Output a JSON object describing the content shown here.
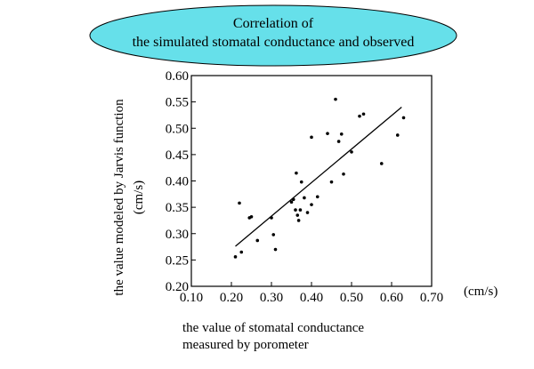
{
  "chart_data": {
    "type": "scatter",
    "title_lines": [
      "Correlation of",
      "the simulated stomatal conductance and observed"
    ],
    "xlabel_lines": [
      "the value of stomatal conductance",
      "measured by porometer"
    ],
    "x_unit": "(cm/s)",
    "ylabel_lines": [
      "the value modeled by Jarvis function",
      "(cm/s)"
    ],
    "xlim": [
      0.1,
      0.7
    ],
    "ylim": [
      0.2,
      0.6
    ],
    "xticks": [
      "0.10",
      "0.20",
      "0.30",
      "0.40",
      "0.50",
      "0.60",
      "0.70"
    ],
    "yticks": [
      "0.20",
      "0.25",
      "0.30",
      "0.35",
      "0.40",
      "0.45",
      "0.50",
      "0.55",
      "0.60"
    ],
    "grid": false,
    "points": [
      [
        0.21,
        0.256
      ],
      [
        0.22,
        0.358
      ],
      [
        0.225,
        0.265
      ],
      [
        0.245,
        0.33
      ],
      [
        0.25,
        0.332
      ],
      [
        0.265,
        0.287
      ],
      [
        0.3,
        0.33
      ],
      [
        0.305,
        0.298
      ],
      [
        0.31,
        0.27
      ],
      [
        0.35,
        0.36
      ],
      [
        0.355,
        0.365
      ],
      [
        0.36,
        0.345
      ],
      [
        0.362,
        0.415
      ],
      [
        0.365,
        0.335
      ],
      [
        0.368,
        0.325
      ],
      [
        0.372,
        0.345
      ],
      [
        0.375,
        0.398
      ],
      [
        0.382,
        0.368
      ],
      [
        0.39,
        0.34
      ],
      [
        0.4,
        0.355
      ],
      [
        0.4,
        0.483
      ],
      [
        0.415,
        0.37
      ],
      [
        0.44,
        0.49
      ],
      [
        0.45,
        0.398
      ],
      [
        0.46,
        0.555
      ],
      [
        0.468,
        0.475
      ],
      [
        0.475,
        0.489
      ],
      [
        0.48,
        0.413
      ],
      [
        0.5,
        0.455
      ],
      [
        0.52,
        0.523
      ],
      [
        0.53,
        0.527
      ],
      [
        0.575,
        0.433
      ],
      [
        0.615,
        0.487
      ],
      [
        0.63,
        0.52
      ]
    ],
    "trendline": [
      [
        0.21,
        0.276
      ],
      [
        0.625,
        0.54
      ]
    ]
  }
}
